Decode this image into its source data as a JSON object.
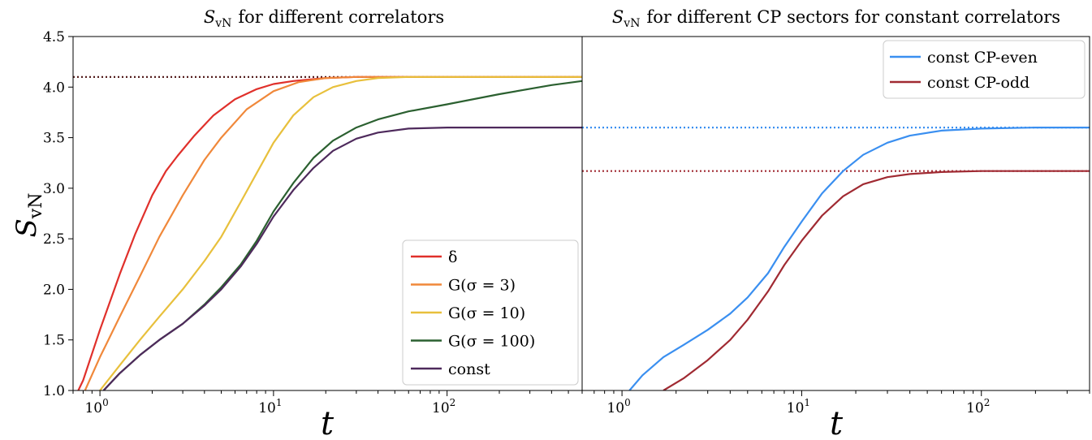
{
  "chart_data": [
    {
      "type": "line",
      "title_var": "S",
      "title_sub": "vN",
      "title_rest": "for different correlators",
      "xlabel": "t",
      "ylabel_var": "S",
      "ylabel_sub": "vN",
      "xscale": "log",
      "xlim": [
        0.7,
        600
      ],
      "ylim": [
        1.0,
        4.5
      ],
      "yticks": [
        "1.0",
        "1.5",
        "2.0",
        "2.5",
        "3.0",
        "3.5",
        "4.0",
        "4.5"
      ],
      "xtick_base": "10",
      "xtick_exps": [
        "0",
        "1",
        "2"
      ],
      "legend_position": "lower-right",
      "series": [
        {
          "name": "δ",
          "color": "#e0302b",
          "x": [
            0.75,
            0.8,
            1.0,
            1.3,
            1.6,
            2.0,
            2.4,
            2.8,
            3.5,
            4.5,
            6,
            8,
            10,
            13,
            20,
            30,
            50,
            100,
            600
          ],
          "y": [
            1.0,
            1.1,
            1.6,
            2.15,
            2.55,
            2.93,
            3.17,
            3.32,
            3.52,
            3.72,
            3.88,
            3.98,
            4.03,
            4.06,
            4.09,
            4.1,
            4.1,
            4.1,
            4.1
          ]
        },
        {
          "name": "G(σ = 3)",
          "color": "#f0883a",
          "x": [
            0.82,
            1.0,
            1.3,
            1.7,
            2.2,
            3.0,
            4.0,
            5.0,
            7,
            10,
            14,
            20,
            30,
            50,
            100,
            600
          ],
          "y": [
            1.0,
            1.33,
            1.73,
            2.13,
            2.52,
            2.93,
            3.28,
            3.5,
            3.78,
            3.96,
            4.05,
            4.09,
            4.1,
            4.1,
            4.1,
            4.1
          ]
        },
        {
          "name": "G(σ = 10)",
          "color": "#e8c03c",
          "x": [
            1.0,
            1.3,
            1.7,
            2.2,
            3.0,
            4.0,
            5.0,
            6.5,
            8,
            10,
            13,
            17,
            22,
            30,
            40,
            60,
            100,
            600
          ],
          "y": [
            1.0,
            1.25,
            1.5,
            1.73,
            2.0,
            2.28,
            2.52,
            2.87,
            3.15,
            3.45,
            3.72,
            3.9,
            4.0,
            4.06,
            4.09,
            4.1,
            4.1,
            4.1
          ]
        },
        {
          "name": "G(σ = 100)",
          "color": "#2b6030",
          "x": [
            1.05,
            1.3,
            1.7,
            2.2,
            3.0,
            4.0,
            5.0,
            6.5,
            8,
            10,
            13,
            17,
            22,
            30,
            40,
            60,
            100,
            200,
            400,
            600
          ],
          "y": [
            1.0,
            1.17,
            1.35,
            1.5,
            1.66,
            1.85,
            2.02,
            2.25,
            2.48,
            2.77,
            3.05,
            3.3,
            3.47,
            3.6,
            3.68,
            3.76,
            3.83,
            3.93,
            4.02,
            4.06
          ]
        },
        {
          "name": "const",
          "color": "#4e2a5c",
          "x": [
            1.05,
            1.3,
            1.7,
            2.2,
            3.0,
            4.0,
            5.0,
            6.5,
            8,
            10,
            13,
            17,
            22,
            30,
            40,
            60,
            100,
            200,
            600
          ],
          "y": [
            1.0,
            1.17,
            1.35,
            1.5,
            1.66,
            1.84,
            2.0,
            2.23,
            2.45,
            2.72,
            2.98,
            3.2,
            3.37,
            3.49,
            3.55,
            3.59,
            3.6,
            3.6,
            3.6
          ]
        }
      ],
      "reference_lines": [
        {
          "y": 4.1,
          "color": "#4a1010",
          "style": "dotted"
        }
      ]
    },
    {
      "type": "line",
      "title_var": "S",
      "title_sub": "vN",
      "title_rest": "for different CP sectors for constant correlators",
      "xlabel": "t",
      "xscale": "log",
      "xlim": [
        0.6,
        400
      ],
      "ylim": [
        1.0,
        4.5
      ],
      "xtick_base": "10",
      "xtick_exps": [
        "0",
        "1",
        "2"
      ],
      "legend_position": "top-right",
      "series": [
        {
          "name": "const CP-even",
          "color": "#3a8ff0",
          "x": [
            1.1,
            1.3,
            1.7,
            2.2,
            3.0,
            4.0,
            5.0,
            6.5,
            8,
            10,
            13,
            17,
            22,
            30,
            40,
            60,
            100,
            200,
            400
          ],
          "y": [
            1.0,
            1.15,
            1.33,
            1.45,
            1.6,
            1.76,
            1.92,
            2.16,
            2.42,
            2.67,
            2.95,
            3.17,
            3.33,
            3.45,
            3.52,
            3.57,
            3.59,
            3.6,
            3.6
          ]
        },
        {
          "name": "const CP-odd",
          "color": "#a02a32",
          "x": [
            1.7,
            2.2,
            3.0,
            4.0,
            5.0,
            6.5,
            8,
            10,
            13,
            17,
            22,
            30,
            40,
            60,
            100,
            200,
            400
          ],
          "y": [
            1.0,
            1.12,
            1.3,
            1.5,
            1.7,
            1.98,
            2.24,
            2.48,
            2.73,
            2.92,
            3.04,
            3.11,
            3.14,
            3.16,
            3.17,
            3.17,
            3.17
          ]
        }
      ],
      "reference_lines": [
        {
          "y": 3.6,
          "color": "#3a8ff0",
          "style": "dotted"
        },
        {
          "y": 3.17,
          "color": "#a02a32",
          "style": "dotted"
        }
      ]
    }
  ]
}
